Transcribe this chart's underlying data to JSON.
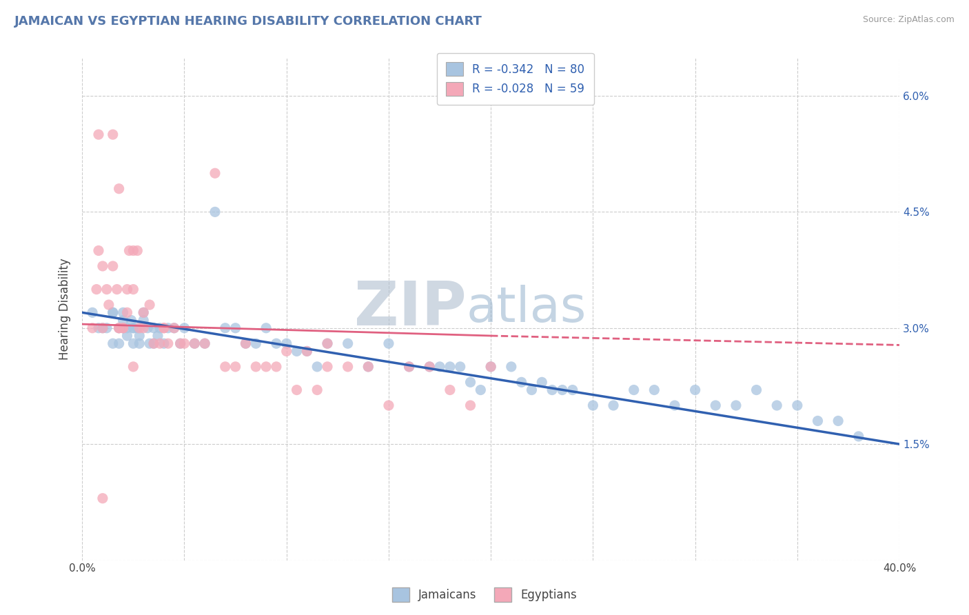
{
  "title": "JAMAICAN VS EGYPTIAN HEARING DISABILITY CORRELATION CHART",
  "source": "Source: ZipAtlas.com",
  "xlabel_jamaicans": "Jamaicans",
  "xlabel_egyptians": "Egyptians",
  "ylabel": "Hearing Disability",
  "xlim": [
    0.0,
    0.4
  ],
  "ylim": [
    0.0,
    0.065
  ],
  "xticks": [
    0.0,
    0.05,
    0.1,
    0.15,
    0.2,
    0.25,
    0.3,
    0.35,
    0.4
  ],
  "xtick_labels": [
    "0.0%",
    "",
    "",
    "",
    "",
    "",
    "",
    "",
    "40.0%"
  ],
  "yticks": [
    0.0,
    0.015,
    0.03,
    0.045,
    0.06
  ],
  "ytick_labels_right": [
    "",
    "1.5%",
    "3.0%",
    "4.5%",
    "6.0%"
  ],
  "R_jamaican": -0.342,
  "N_jamaican": 80,
  "R_egyptian": -0.028,
  "N_egyptian": 59,
  "jamaican_color": "#a8c4e0",
  "egyptian_color": "#f4a8b8",
  "jamaican_line_color": "#3060b0",
  "egyptian_line_color": "#e06080",
  "grid_color": "#cccccc",
  "background_color": "#ffffff",
  "zip_color": "#b0bfd0",
  "atlas_color": "#8aaac8",
  "jamaican_x": [
    0.005,
    0.008,
    0.01,
    0.012,
    0.015,
    0.015,
    0.018,
    0.018,
    0.02,
    0.02,
    0.022,
    0.022,
    0.024,
    0.025,
    0.025,
    0.027,
    0.028,
    0.028,
    0.03,
    0.03,
    0.032,
    0.033,
    0.035,
    0.035,
    0.037,
    0.038,
    0.04,
    0.042,
    0.045,
    0.048,
    0.05,
    0.055,
    0.06,
    0.065,
    0.07,
    0.075,
    0.08,
    0.085,
    0.09,
    0.095,
    0.1,
    0.105,
    0.11,
    0.115,
    0.12,
    0.13,
    0.14,
    0.15,
    0.16,
    0.17,
    0.175,
    0.18,
    0.185,
    0.19,
    0.195,
    0.2,
    0.21,
    0.215,
    0.22,
    0.225,
    0.23,
    0.235,
    0.24,
    0.25,
    0.26,
    0.27,
    0.28,
    0.29,
    0.3,
    0.31,
    0.32,
    0.33,
    0.34,
    0.35,
    0.36,
    0.37,
    0.38,
    0.015,
    0.02,
    0.025
  ],
  "jamaican_y": [
    0.032,
    0.03,
    0.03,
    0.03,
    0.032,
    0.028,
    0.03,
    0.028,
    0.031,
    0.03,
    0.03,
    0.029,
    0.031,
    0.03,
    0.028,
    0.03,
    0.029,
    0.028,
    0.032,
    0.031,
    0.03,
    0.028,
    0.03,
    0.028,
    0.029,
    0.03,
    0.028,
    0.03,
    0.03,
    0.028,
    0.03,
    0.028,
    0.028,
    0.045,
    0.03,
    0.03,
    0.028,
    0.028,
    0.03,
    0.028,
    0.028,
    0.027,
    0.027,
    0.025,
    0.028,
    0.028,
    0.025,
    0.028,
    0.025,
    0.025,
    0.025,
    0.025,
    0.025,
    0.023,
    0.022,
    0.025,
    0.025,
    0.023,
    0.022,
    0.023,
    0.022,
    0.022,
    0.022,
    0.02,
    0.02,
    0.022,
    0.022,
    0.02,
    0.022,
    0.02,
    0.02,
    0.022,
    0.02,
    0.02,
    0.018,
    0.018,
    0.016,
    0.032,
    0.032,
    0.03
  ],
  "egyptian_x": [
    0.005,
    0.007,
    0.008,
    0.01,
    0.01,
    0.012,
    0.013,
    0.015,
    0.015,
    0.017,
    0.018,
    0.018,
    0.02,
    0.02,
    0.022,
    0.022,
    0.023,
    0.025,
    0.025,
    0.027,
    0.028,
    0.03,
    0.03,
    0.033,
    0.035,
    0.038,
    0.04,
    0.042,
    0.045,
    0.048,
    0.05,
    0.055,
    0.06,
    0.065,
    0.07,
    0.075,
    0.08,
    0.085,
    0.09,
    0.095,
    0.1,
    0.105,
    0.11,
    0.115,
    0.12,
    0.13,
    0.14,
    0.15,
    0.16,
    0.17,
    0.18,
    0.19,
    0.2,
    0.12,
    0.025,
    0.008,
    0.018,
    0.04,
    0.01
  ],
  "egyptian_y": [
    0.03,
    0.035,
    0.04,
    0.03,
    0.038,
    0.035,
    0.033,
    0.055,
    0.038,
    0.035,
    0.048,
    0.03,
    0.03,
    0.03,
    0.035,
    0.032,
    0.04,
    0.035,
    0.04,
    0.04,
    0.03,
    0.032,
    0.03,
    0.033,
    0.028,
    0.028,
    0.03,
    0.028,
    0.03,
    0.028,
    0.028,
    0.028,
    0.028,
    0.05,
    0.025,
    0.025,
    0.028,
    0.025,
    0.025,
    0.025,
    0.027,
    0.022,
    0.027,
    0.022,
    0.028,
    0.025,
    0.025,
    0.02,
    0.025,
    0.025,
    0.022,
    0.02,
    0.025,
    0.025,
    0.025,
    0.055,
    0.03,
    0.03,
    0.008
  ],
  "jam_trend_x0": 0.0,
  "jam_trend_y0": 0.032,
  "jam_trend_x1": 0.4,
  "jam_trend_y1": 0.015,
  "egy_trend_x0": 0.0,
  "egy_trend_y0": 0.0305,
  "egy_trend_x1": 0.2,
  "egy_trend_y1": 0.029,
  "egy_trend_dash_x0": 0.2,
  "egy_trend_dash_y0": 0.029,
  "egy_trend_dash_x1": 0.4,
  "egy_trend_dash_y1": 0.0278
}
